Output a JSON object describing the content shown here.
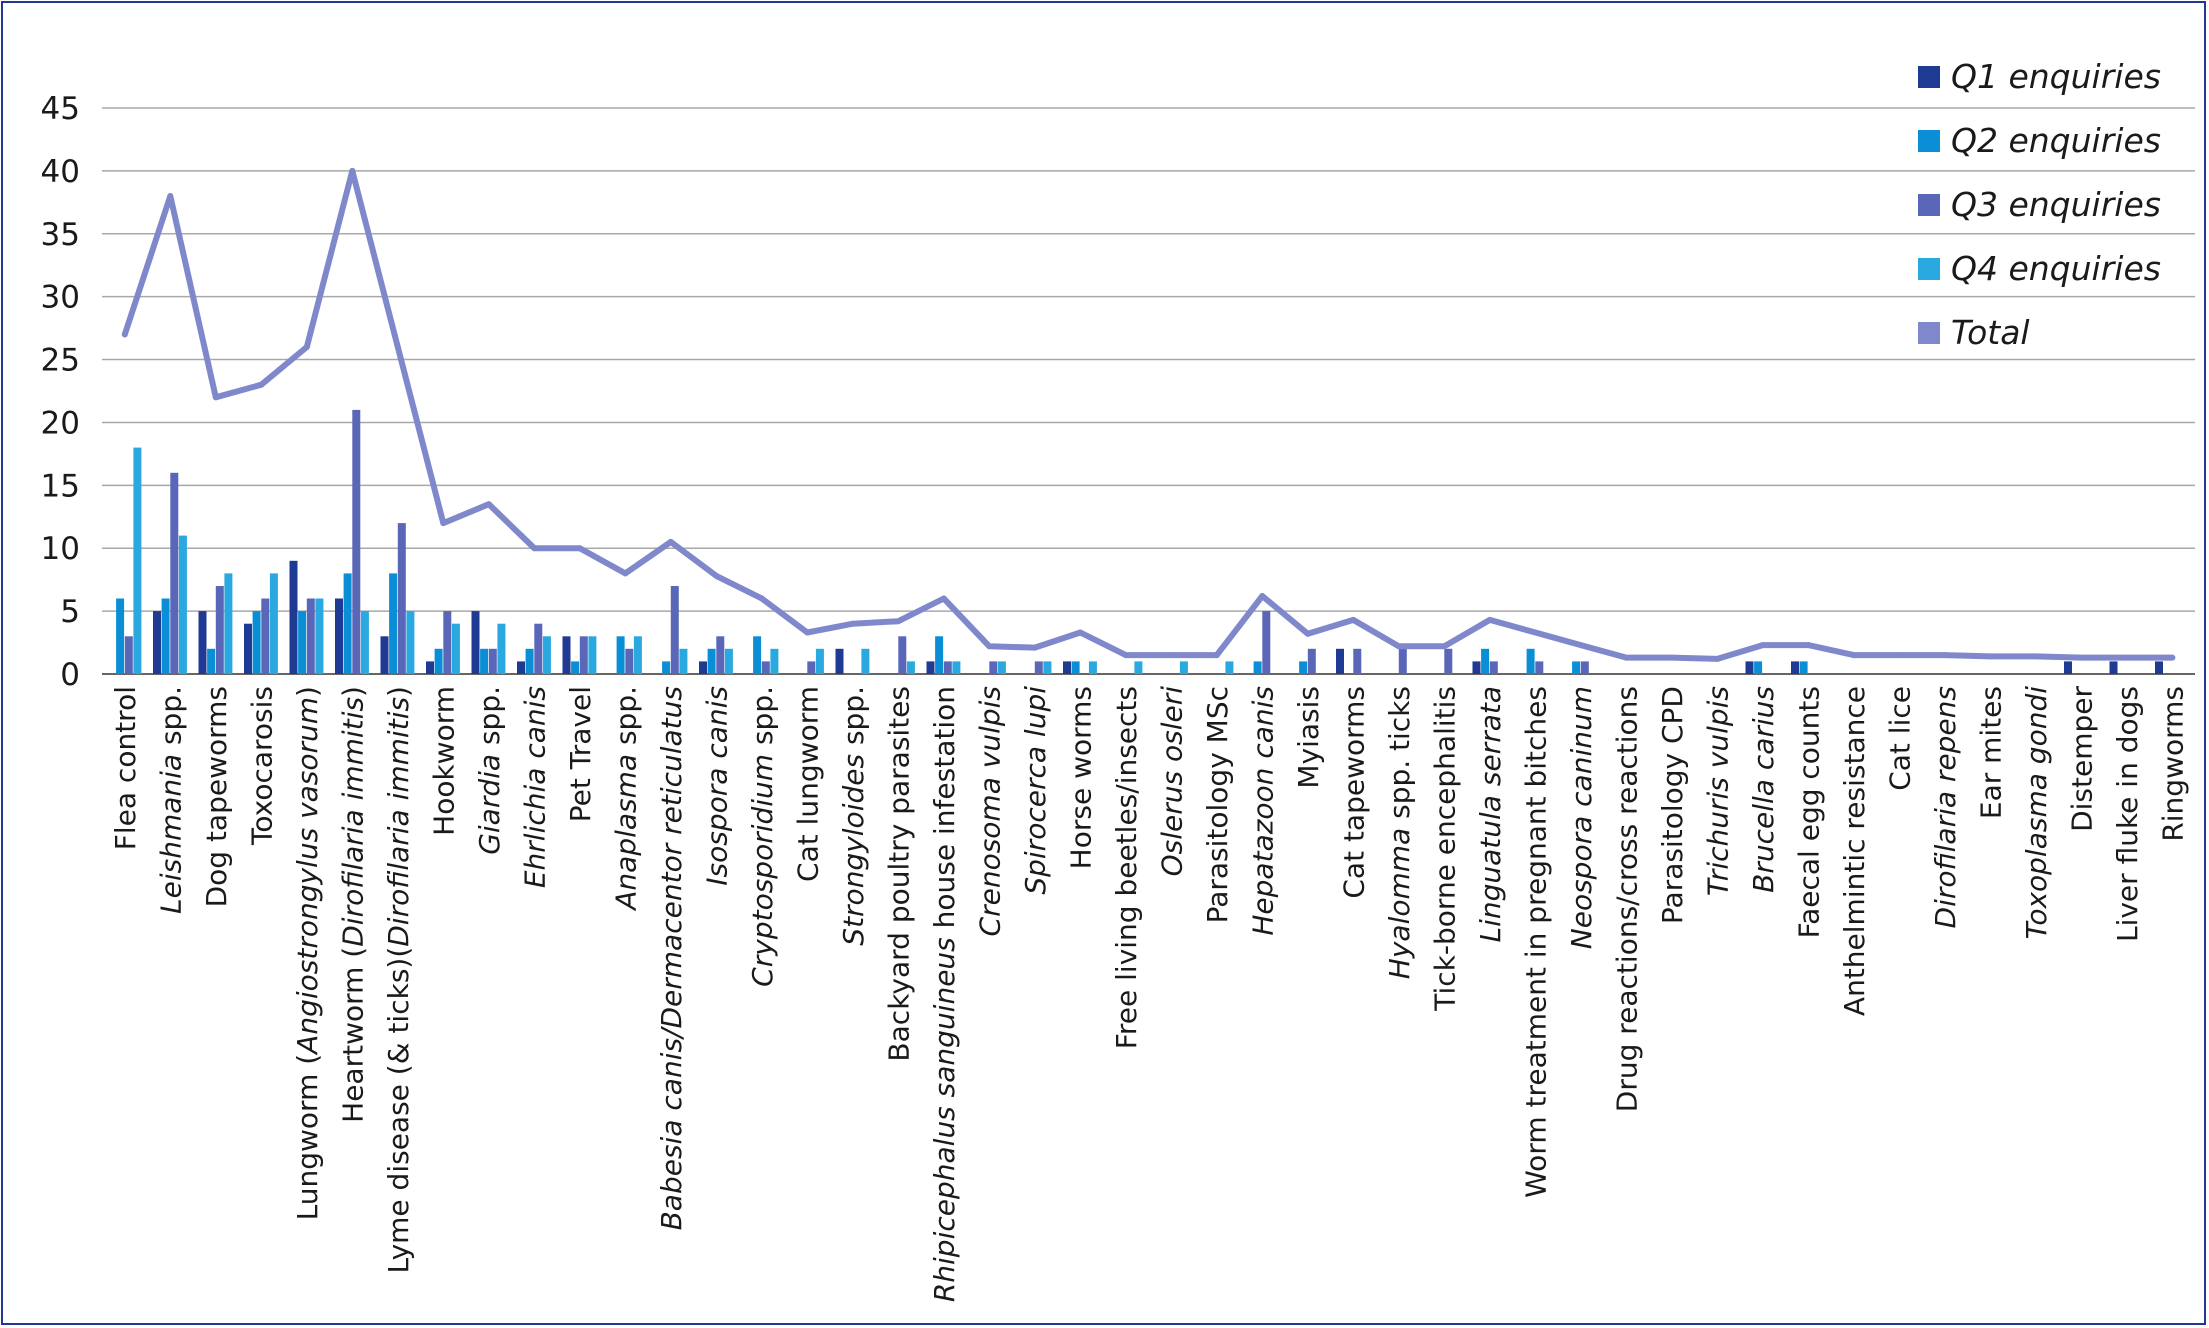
{
  "chart_data": {
    "type": "bar",
    "title": "",
    "xlabel": "",
    "ylabel": "",
    "ylim": [
      0,
      45
    ],
    "yticks": [
      0,
      5,
      10,
      15,
      20,
      25,
      30,
      35,
      40,
      45
    ],
    "grid": true,
    "legend_position": "top-right",
    "categories": [
      {
        "label": "Flea control",
        "parts": [
          {
            "t": "Flea control",
            "i": false
          }
        ]
      },
      {
        "label": "Leishmania spp.",
        "parts": [
          {
            "t": "Leishmania",
            "i": true
          },
          {
            "t": " spp.",
            "i": false
          }
        ]
      },
      {
        "label": "Dog tapeworms",
        "parts": [
          {
            "t": "Dog tapeworms",
            "i": false
          }
        ]
      },
      {
        "label": "Toxocarosis",
        "parts": [
          {
            "t": "Toxocarosis",
            "i": false
          }
        ]
      },
      {
        "label": "Lungworm (Angiostrongylus vasorum)",
        "parts": [
          {
            "t": "Lungworm (",
            "i": false
          },
          {
            "t": "Angiostrongylus vasorum",
            "i": true
          },
          {
            "t": ")",
            "i": false
          }
        ]
      },
      {
        "label": "Heartworm (Dirofilaria immitis)",
        "parts": [
          {
            "t": "Heartworm (",
            "i": false
          },
          {
            "t": "Dirofilaria immitis",
            "i": true
          },
          {
            "t": ")",
            "i": false
          }
        ]
      },
      {
        "label": "Lyme disease (& ticks)(Dirofilaria immitis)",
        "parts": [
          {
            "t": "Lyme disease (& ticks)(",
            "i": false
          },
          {
            "t": "Dirofilaria immitis",
            "i": true
          },
          {
            "t": ")",
            "i": false
          }
        ]
      },
      {
        "label": "Hookworm",
        "parts": [
          {
            "t": "Hookworm",
            "i": false
          }
        ]
      },
      {
        "label": "Giardia spp.",
        "parts": [
          {
            "t": "Giardia",
            "i": true
          },
          {
            "t": " spp.",
            "i": false
          }
        ]
      },
      {
        "label": "Ehrlichia canis",
        "parts": [
          {
            "t": "Ehrlichia canis",
            "i": true
          }
        ]
      },
      {
        "label": "Pet Travel",
        "parts": [
          {
            "t": "Pet Travel",
            "i": false
          }
        ]
      },
      {
        "label": "Anaplasma spp.",
        "parts": [
          {
            "t": "Anaplasma",
            "i": true
          },
          {
            "t": " spp.",
            "i": false
          }
        ]
      },
      {
        "label": "Babesia canis/Dermacentor reticulatus",
        "parts": [
          {
            "t": "Babesia canis/Dermacentor reticulatus",
            "i": true
          }
        ]
      },
      {
        "label": "Isospora canis",
        "parts": [
          {
            "t": "Isospora canis",
            "i": true
          }
        ]
      },
      {
        "label": "Cryptosporidium spp.",
        "parts": [
          {
            "t": "Cryptosporidium",
            "i": true
          },
          {
            "t": " spp.",
            "i": false
          }
        ]
      },
      {
        "label": "Cat lungworm",
        "parts": [
          {
            "t": "Cat lungworm",
            "i": false
          }
        ]
      },
      {
        "label": "Strongyloides spp.",
        "parts": [
          {
            "t": "Strongyloides",
            "i": true
          },
          {
            "t": " spp.",
            "i": false
          }
        ]
      },
      {
        "label": "Backyard poultry parasites",
        "parts": [
          {
            "t": "Backyard poultry parasites",
            "i": false
          }
        ]
      },
      {
        "label": "Rhipicephalus sanguineus house infestation",
        "parts": [
          {
            "t": "Rhipicephalus sanguineus",
            "i": true
          },
          {
            "t": " house infestation",
            "i": false
          }
        ]
      },
      {
        "label": "Crenosoma vulpis",
        "parts": [
          {
            "t": "Crenosoma vulpis",
            "i": true
          }
        ]
      },
      {
        "label": "Spirocerca lupi",
        "parts": [
          {
            "t": "Spirocerca lupi",
            "i": true
          }
        ]
      },
      {
        "label": "Horse worms",
        "parts": [
          {
            "t": "Horse worms",
            "i": false
          }
        ]
      },
      {
        "label": "Free living beetles/insects",
        "parts": [
          {
            "t": "Free living beetles/insects",
            "i": false
          }
        ]
      },
      {
        "label": "Oslerus osleri",
        "parts": [
          {
            "t": "Oslerus osleri",
            "i": true
          }
        ]
      },
      {
        "label": "Parasitology MSc",
        "parts": [
          {
            "t": "Parasitology MSc",
            "i": false
          }
        ]
      },
      {
        "label": "Hepatazoon canis",
        "parts": [
          {
            "t": "Hepatazoon canis",
            "i": true
          }
        ]
      },
      {
        "label": "Myiasis",
        "parts": [
          {
            "t": "Myiasis",
            "i": false
          }
        ]
      },
      {
        "label": "Cat tapeworms",
        "parts": [
          {
            "t": "Cat tapeworms",
            "i": false
          }
        ]
      },
      {
        "label": "Hyalomma spp. ticks",
        "parts": [
          {
            "t": "Hyalomma",
            "i": true
          },
          {
            "t": " spp. ticks",
            "i": false
          }
        ]
      },
      {
        "label": "Tick-borne encephalitis",
        "parts": [
          {
            "t": "Tick-borne encephalitis",
            "i": false
          }
        ]
      },
      {
        "label": "Linguatula serrata",
        "parts": [
          {
            "t": "Linguatula serrata",
            "i": true
          }
        ]
      },
      {
        "label": "Worm treatment in pregnant bitches",
        "parts": [
          {
            "t": "Worm treatment in pregnant bitches",
            "i": false
          }
        ]
      },
      {
        "label": "Neospora caninum",
        "parts": [
          {
            "t": "Neospora caninum",
            "i": true
          }
        ]
      },
      {
        "label": "Drug reactions/cross reactions",
        "parts": [
          {
            "t": "Drug reactions/cross reactions",
            "i": false
          }
        ]
      },
      {
        "label": "Parasitology CPD",
        "parts": [
          {
            "t": "Parasitology CPD",
            "i": false
          }
        ]
      },
      {
        "label": "Trichuris vulpis",
        "parts": [
          {
            "t": "Trichuris vulpis",
            "i": true
          }
        ]
      },
      {
        "label": "Brucella carius",
        "parts": [
          {
            "t": "Brucella carius",
            "i": true
          }
        ]
      },
      {
        "label": "Faecal egg counts",
        "parts": [
          {
            "t": "Faecal egg counts",
            "i": false
          }
        ]
      },
      {
        "label": "Anthelmintic resistance",
        "parts": [
          {
            "t": "Anthelmintic resistance",
            "i": false
          }
        ]
      },
      {
        "label": "Cat lice",
        "parts": [
          {
            "t": "Cat lice",
            "i": false
          }
        ]
      },
      {
        "label": "Dirofilaria repens",
        "parts": [
          {
            "t": "Dirofilaria repens",
            "i": true
          }
        ]
      },
      {
        "label": "Ear mites",
        "parts": [
          {
            "t": "Ear mites",
            "i": false
          }
        ]
      },
      {
        "label": "Toxoplasma gondi",
        "parts": [
          {
            "t": "Toxoplasma gondi",
            "i": true
          }
        ]
      },
      {
        "label": "Distemper",
        "parts": [
          {
            "t": "Distemper",
            "i": false
          }
        ]
      },
      {
        "label": "Liver fluke in dogs",
        "parts": [
          {
            "t": "Liver fluke in dogs",
            "i": false
          }
        ]
      },
      {
        "label": "Ringworms",
        "parts": [
          {
            "t": "Ringworms",
            "i": false
          }
        ]
      }
    ],
    "series": [
      {
        "name": "Q1 enquiries",
        "type": "bar",
        "color": "#1f3a93",
        "values": [
          0,
          5,
          5,
          4,
          9,
          6,
          3,
          1,
          5,
          1,
          3,
          0,
          0,
          1,
          0,
          0,
          2,
          0,
          1,
          0,
          0,
          1,
          0,
          0,
          0,
          0,
          0,
          2,
          0,
          0,
          1,
          0,
          0,
          0,
          0,
          0,
          1,
          1,
          0,
          0,
          0,
          0,
          0,
          1,
          1,
          1
        ]
      },
      {
        "name": "Q2 enquiries",
        "type": "bar",
        "color": "#0a8fd6",
        "values": [
          6,
          6,
          2,
          5,
          5,
          8,
          8,
          2,
          2,
          2,
          1,
          3,
          1,
          2,
          3,
          0,
          0,
          0,
          3,
          0,
          0,
          1,
          0,
          0,
          0,
          1,
          1,
          0,
          0,
          0,
          2,
          2,
          1,
          0,
          0,
          0,
          1,
          1,
          0,
          0,
          0,
          0,
          0,
          0,
          0,
          0
        ]
      },
      {
        "name": "Q3 enquiries",
        "type": "bar",
        "color": "#5a67b8",
        "values": [
          3,
          16,
          7,
          6,
          6,
          21,
          12,
          5,
          2,
          4,
          3,
          2,
          7,
          3,
          1,
          1,
          0,
          3,
          1,
          1,
          1,
          0,
          0,
          0,
          0,
          5,
          2,
          2,
          2,
          2,
          1,
          1,
          1,
          0,
          0,
          0,
          0,
          0,
          0,
          0,
          0,
          0,
          0,
          0,
          0,
          0
        ]
      },
      {
        "name": "Q4 enquiries",
        "type": "bar",
        "color": "#2aa8e0",
        "values": [
          18,
          11,
          8,
          8,
          6,
          5,
          5,
          4,
          4,
          3,
          3,
          3,
          2,
          2,
          2,
          2,
          2,
          1,
          1,
          1,
          1,
          1,
          1,
          1,
          1,
          0,
          0,
          0,
          0,
          0,
          0,
          0,
          0,
          0,
          0,
          0,
          0,
          0,
          0,
          0,
          0,
          0,
          0,
          0,
          0,
          0
        ]
      },
      {
        "name": "Total",
        "type": "line",
        "color": "#8088cc",
        "values": [
          27,
          38,
          22,
          23,
          26,
          40,
          26,
          12,
          13.5,
          10,
          10,
          8,
          10.5,
          7.8,
          6,
          3.3,
          4,
          4.2,
          6,
          2.2,
          2.1,
          3.3,
          1.5,
          1.5,
          1.5,
          6.2,
          3.2,
          4.3,
          2.2,
          2.2,
          4.3,
          3.3,
          2.3,
          1.3,
          1.3,
          1.2,
          2.3,
          2.3,
          1.5,
          1.5,
          1.5,
          1.4,
          1.4,
          1.3,
          1.3,
          1.3
        ]
      }
    ]
  }
}
